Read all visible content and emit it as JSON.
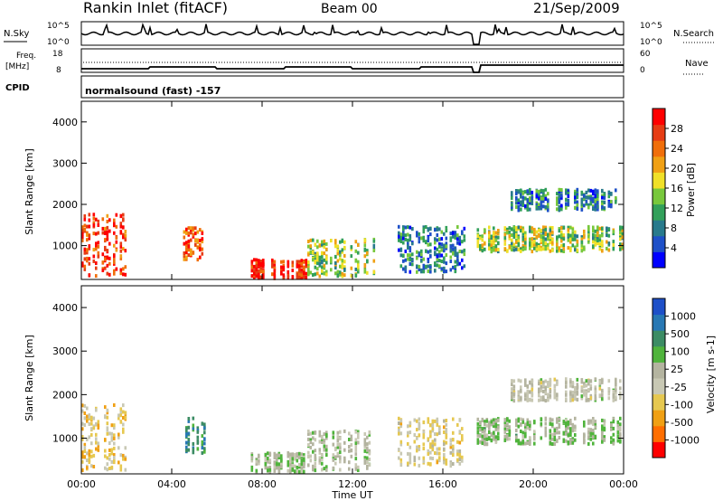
{
  "header": {
    "title": "Rankin Inlet (fitACF)",
    "beam": "Beam 00",
    "date": "21/Sep/2009"
  },
  "top_panels": {
    "nsky_label": "N.Sky",
    "nsky_ticks": [
      "10^5",
      "10^0"
    ],
    "nsearch_label": "N.Search",
    "nsearch_ticks": [
      "10^5",
      "10^0"
    ],
    "freq_label_1": "Freq.",
    "freq_label_2": "[MHz]",
    "freq_ticks": [
      "18",
      "8"
    ],
    "nave_label": "Nave",
    "nave_ticks": [
      "60",
      "0"
    ],
    "cpid_label": "CPID",
    "cpid_text": "normalsound (fast) -157"
  },
  "colors": {
    "power_scale": [
      "#0000ff",
      "#1e50c8",
      "#287a8c",
      "#32a05a",
      "#78c83c",
      "#f0e028",
      "#f0a014",
      "#f06e0a",
      "#e63c14",
      "#ff0000"
    ],
    "velocity_scale": [
      "#1e50c8",
      "#2878b4",
      "#3c8c64",
      "#50b43c",
      "#b4b4a0",
      "#c8c8b4",
      "#e6c850",
      "#f0a014",
      "#ff6e00",
      "#ff0000"
    ]
  },
  "chart_data": [
    {
      "type": "heatmap",
      "name": "power",
      "xlabel": "Time UT",
      "ylabel": "Slant Range [km]",
      "ylim": [
        180,
        4500
      ],
      "y_ticks": [
        "4000",
        "3000",
        "2000",
        "1000"
      ],
      "colorbar_label": "Power [dB]",
      "colorbar_ticks": [
        "28",
        "24",
        "20",
        "16",
        "12",
        "8",
        "4"
      ],
      "colorbar_range": [
        0,
        30
      ],
      "echo_regions": [
        {
          "t0": 0.0,
          "t1": 2.0,
          "r0": 300,
          "r1": 1800,
          "level": 26
        },
        {
          "t0": 4.5,
          "t1": 5.5,
          "r0": 700,
          "r1": 1500,
          "level": 24
        },
        {
          "t0": 7.5,
          "t1": 10.0,
          "r0": 250,
          "r1": 700,
          "level": 27
        },
        {
          "t0": 10.0,
          "t1": 13.0,
          "r0": 300,
          "r1": 1200,
          "level": 14
        },
        {
          "t0": 14.0,
          "t1": 17.0,
          "r0": 400,
          "r1": 1500,
          "level": 8
        },
        {
          "t0": 17.5,
          "t1": 24.0,
          "r0": 900,
          "r1": 1500,
          "level": 14
        },
        {
          "t0": 19.0,
          "t1": 24.0,
          "r0": 1900,
          "r1": 2400,
          "level": 8
        }
      ]
    },
    {
      "type": "heatmap",
      "name": "velocity",
      "xlabel": "Time UT",
      "ylabel": "Slant Range [km]",
      "ylim": [
        180,
        4500
      ],
      "x_ticks": [
        "00:00",
        "04:00",
        "08:00",
        "12:00",
        "16:00",
        "20:00",
        "00:00"
      ],
      "xlim_hours": [
        0,
        24
      ],
      "y_ticks": [
        "4000",
        "3000",
        "2000",
        "1000"
      ],
      "colorbar_label": "Velocity [m s-1]",
      "colorbar_ticks": [
        "1000",
        "500",
        "100",
        "25",
        "-25",
        "-100",
        "-500",
        "-1000"
      ],
      "colorbar_range": [
        -1000,
        1000
      ],
      "echo_regions": [
        {
          "t0": 0.0,
          "t1": 2.0,
          "r0": 300,
          "r1": 1800,
          "vel": -300
        },
        {
          "t0": 4.5,
          "t1": 5.5,
          "r0": 700,
          "r1": 1500,
          "vel": 600
        },
        {
          "t0": 7.5,
          "t1": 10.0,
          "r0": 250,
          "r1": 700,
          "vel": 150
        },
        {
          "t0": 10.0,
          "t1": 13.0,
          "r0": 300,
          "r1": 1200,
          "vel": 100
        },
        {
          "t0": 14.0,
          "t1": 17.0,
          "r0": 400,
          "r1": 1500,
          "vel": -200
        },
        {
          "t0": 17.5,
          "t1": 24.0,
          "r0": 900,
          "r1": 1500,
          "vel": 200
        },
        {
          "t0": 19.0,
          "t1": 24.0,
          "r0": 1900,
          "r1": 2400,
          "vel": 0
        }
      ]
    }
  ]
}
